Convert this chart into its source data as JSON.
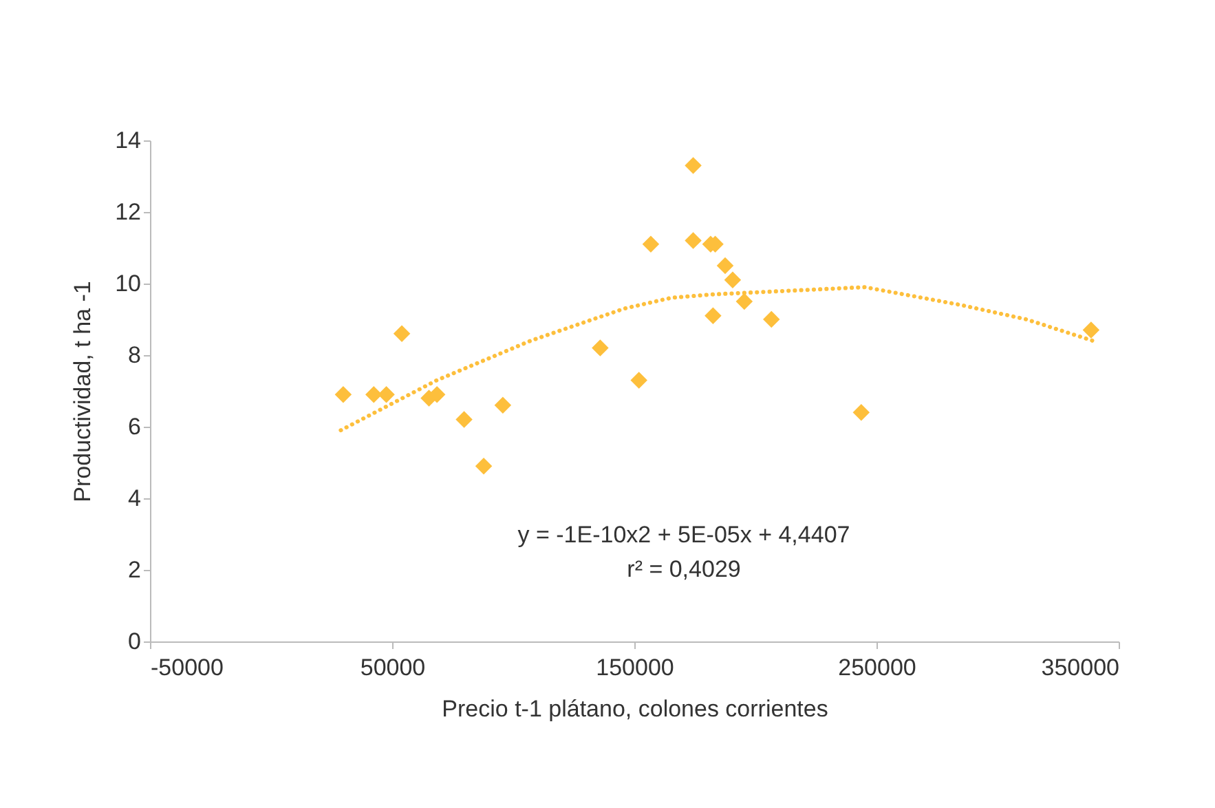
{
  "chart_data": {
    "type": "scatter",
    "xlabel": "Precio t-1 plátano, colones corrientes",
    "ylabel": "Productividad, t ha -1",
    "xlim": [
      -50000,
      350000
    ],
    "xticks": [
      -50000,
      50000,
      150000,
      250000,
      350000
    ],
    "ylim": [
      0,
      14
    ],
    "yticks": [
      0,
      2,
      4,
      6,
      8,
      10,
      12,
      14
    ],
    "grid": false,
    "marker": "diamond",
    "annotations": [
      "y = -1E-10x2 + 5E-05x + 4,4407",
      "r² = 0,4029"
    ],
    "series": [
      {
        "type": "scatter",
        "color": "#fdbf3c",
        "x": [
          29800,
          42400,
          47600,
          54000,
          65200,
          68500,
          79700,
          87800,
          95700,
          135900,
          151900,
          156800,
          174300,
          174300,
          181500,
          183400,
          187500,
          190600,
          182500,
          195400,
          206600,
          243700,
          338600
        ],
        "values": [
          6.9,
          6.9,
          6.9,
          8.6,
          6.8,
          6.9,
          6.2,
          4.9,
          6.6,
          8.2,
          7.3,
          11.1,
          13.3,
          11.2,
          11.1,
          11.1,
          10.5,
          10.1,
          9.1,
          9.5,
          9.0,
          6.4,
          8.7
        ]
      },
      {
        "type": "line",
        "color": "#fdbf3c",
        "line_style": "dotted",
        "marker": "none",
        "x": [
          28800,
          68500,
          107100,
          145800,
          165100,
          183000,
          245200,
          284900,
          311900,
          339400
        ],
        "values": [
          5.9,
          7.3,
          8.4,
          9.3,
          9.6,
          9.7,
          9.9,
          9.4,
          9.0,
          8.4
        ]
      }
    ]
  }
}
